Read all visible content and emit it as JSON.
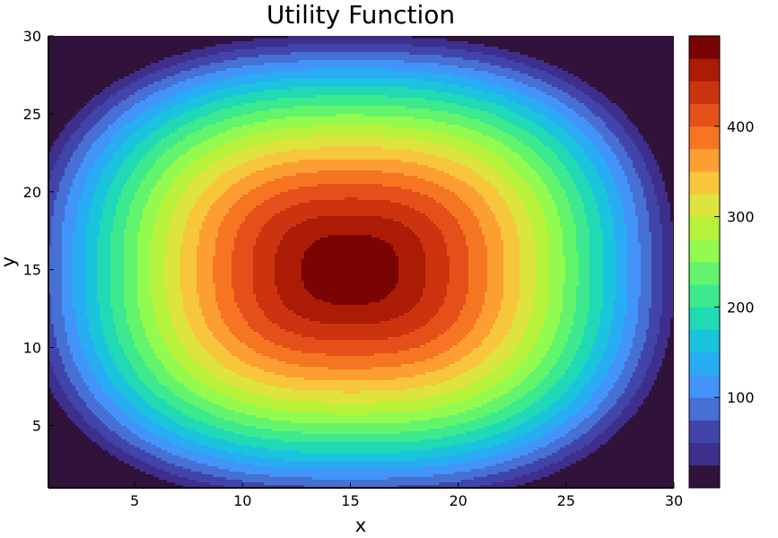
{
  "chart_data": {
    "type": "heatmap",
    "style": "filled-contour",
    "title": "Utility Function",
    "xlabel": "x",
    "ylabel": "y",
    "xlim": [
      1,
      30
    ],
    "ylim": [
      1,
      30
    ],
    "x_ticks": [
      5,
      10,
      15,
      20,
      25,
      30
    ],
    "y_ticks": [
      5,
      10,
      15,
      20,
      25,
      30
    ],
    "grid": false,
    "function": {
      "description": "Utility peaks at the center and falls off toward the edges",
      "peak": [
        15,
        15
      ],
      "peak_value": 500,
      "edge_value": 0
    },
    "colorbar": {
      "min": 0,
      "max": 500,
      "levels": 20,
      "ticks": [
        100,
        200,
        300,
        400
      ],
      "colors": [
        "#30123b",
        "#3e2f8c",
        "#4145ab",
        "#4770d4",
        "#4294f8",
        "#28acf3",
        "#1bc4dd",
        "#20d9b5",
        "#3ce98f",
        "#62f46c",
        "#93fa50",
        "#b8f23b",
        "#dde43e",
        "#f8c63a",
        "#fd9e33",
        "#f67522",
        "#e5501a",
        "#cc3410",
        "#ab1b06",
        "#7a0403"
      ]
    }
  }
}
